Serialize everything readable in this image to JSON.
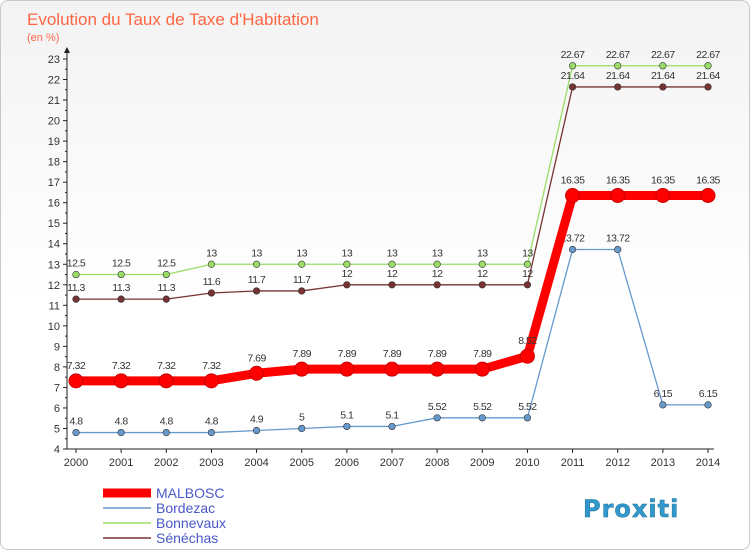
{
  "chart_data": {
    "type": "line",
    "title": "Evolution du Taux de Taxe d'Habitation",
    "subtitle": "(en %)",
    "categories": [
      "2000",
      "2001",
      "2002",
      "2003",
      "2004",
      "2005",
      "2006",
      "2007",
      "2008",
      "2009",
      "2010",
      "2011",
      "2012",
      "2013",
      "2014"
    ],
    "ylim": [
      4,
      23
    ],
    "yticks": [
      4,
      5,
      6,
      7,
      8,
      9,
      10,
      11,
      12,
      13,
      14,
      15,
      16,
      17,
      18,
      19,
      20,
      21,
      22,
      23
    ],
    "grid": false,
    "legend_position": "bottom-left",
    "series": [
      {
        "name": "MALBOSC",
        "color": "#ff0000",
        "values": [
          7.32,
          7.32,
          7.32,
          7.32,
          7.69,
          7.89,
          7.89,
          7.89,
          7.89,
          7.89,
          8.52,
          16.35,
          16.35,
          16.35,
          16.35
        ],
        "labels": [
          "7.32",
          "7.32",
          "7.32",
          "7.32",
          "7.69",
          "7.89",
          "7.89",
          "7.89",
          "7.89",
          "7.89",
          "8.52",
          "16.35",
          "16.35",
          "16.35",
          "16.35"
        ]
      },
      {
        "name": "Bordezac",
        "color": "#6699cc",
        "values": [
          4.8,
          4.8,
          4.8,
          4.8,
          4.9,
          5,
          5.1,
          5.1,
          5.52,
          5.52,
          5.52,
          13.72,
          13.72,
          6.15,
          6.15
        ],
        "labels": [
          "4.8",
          "4.8",
          "4.8",
          "4.8",
          "4.9",
          "5",
          "5.1",
          "5.1",
          "5.52",
          "5.52",
          "5.52",
          "13.72",
          "13.72",
          "6.15",
          "6.15"
        ]
      },
      {
        "name": "Bonnevaux",
        "color": "#99dd66",
        "values": [
          12.5,
          12.5,
          12.5,
          13,
          13,
          13,
          13,
          13,
          13,
          13,
          13,
          22.67,
          22.67,
          22.67,
          22.67
        ],
        "labels": [
          "12.5",
          "12.5",
          "12.5",
          "13",
          "13",
          "13",
          "13",
          "13",
          "13",
          "13",
          "13",
          "22.67",
          "22.67",
          "22.67",
          "22.67"
        ]
      },
      {
        "name": "Sénéchas",
        "color": "#773333",
        "values": [
          11.3,
          11.3,
          11.3,
          11.6,
          11.7,
          11.7,
          12,
          12,
          12,
          12,
          12,
          21.64,
          21.64,
          21.64,
          21.64
        ],
        "labels": [
          "11.3",
          "11.3",
          "11.3",
          "11.6",
          "11.7",
          "11.7",
          "12",
          "12",
          "12",
          "12",
          "12",
          "21.64",
          "21.64",
          "21.64",
          "21.64"
        ]
      }
    ]
  },
  "logo": {
    "text": "Proxiti"
  }
}
